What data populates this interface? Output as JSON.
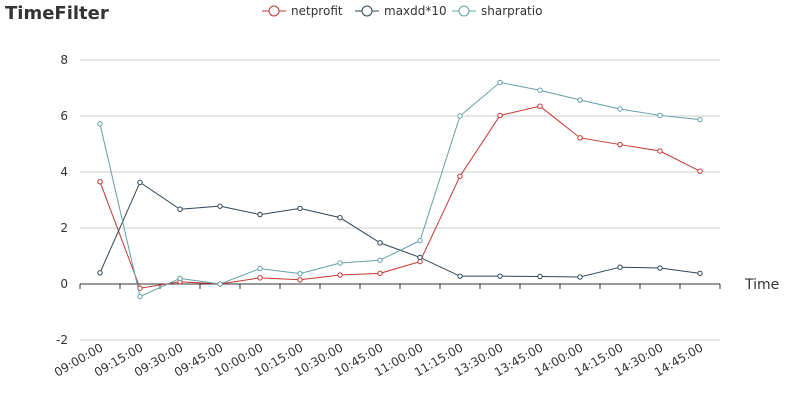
{
  "colors": {
    "netprofit": "#c23531",
    "maxdd": "#2f4554",
    "sharpratio": "#61a0a8",
    "axis": "#333333",
    "grid": "#cccccc"
  },
  "chart_data": {
    "type": "line",
    "title": "TimeFilter",
    "xlabel": "Time",
    "ylabel": "",
    "ylim": [
      -2,
      8
    ],
    "yticks": [
      "-2",
      "0",
      "2",
      "4",
      "6",
      "8"
    ],
    "grid": true,
    "legend_position": "top-center",
    "categories": [
      "09:00:00",
      "09:15:00",
      "09:30:00",
      "09:45:00",
      "10:00:00",
      "10:15:00",
      "10:30:00",
      "10:45:00",
      "11:00:00",
      "11:15:00",
      "13:30:00",
      "13:45:00",
      "14:00:00",
      "14:15:00",
      "14:30:00",
      "14:45:00"
    ],
    "series": [
      {
        "name": "netprofit",
        "color": "#c23531",
        "values": [
          3.65,
          -0.15,
          0.08,
          0.0,
          0.22,
          0.15,
          0.32,
          0.38,
          0.8,
          3.85,
          6.02,
          6.35,
          5.22,
          4.98,
          4.75,
          4.03
        ]
      },
      {
        "name": "maxdd*10",
        "color": "#2f4554",
        "values": [
          0.4,
          3.63,
          2.67,
          2.78,
          2.48,
          2.7,
          2.37,
          1.47,
          0.95,
          0.28,
          0.28,
          0.27,
          0.25,
          0.6,
          0.57,
          0.38
        ]
      },
      {
        "name": "sharpratio",
        "color": "#61a0a8",
        "values": [
          5.72,
          -0.45,
          0.2,
          0.0,
          0.55,
          0.37,
          0.75,
          0.85,
          1.55,
          6.0,
          7.2,
          6.92,
          6.57,
          6.25,
          6.02,
          5.87
        ]
      }
    ]
  }
}
